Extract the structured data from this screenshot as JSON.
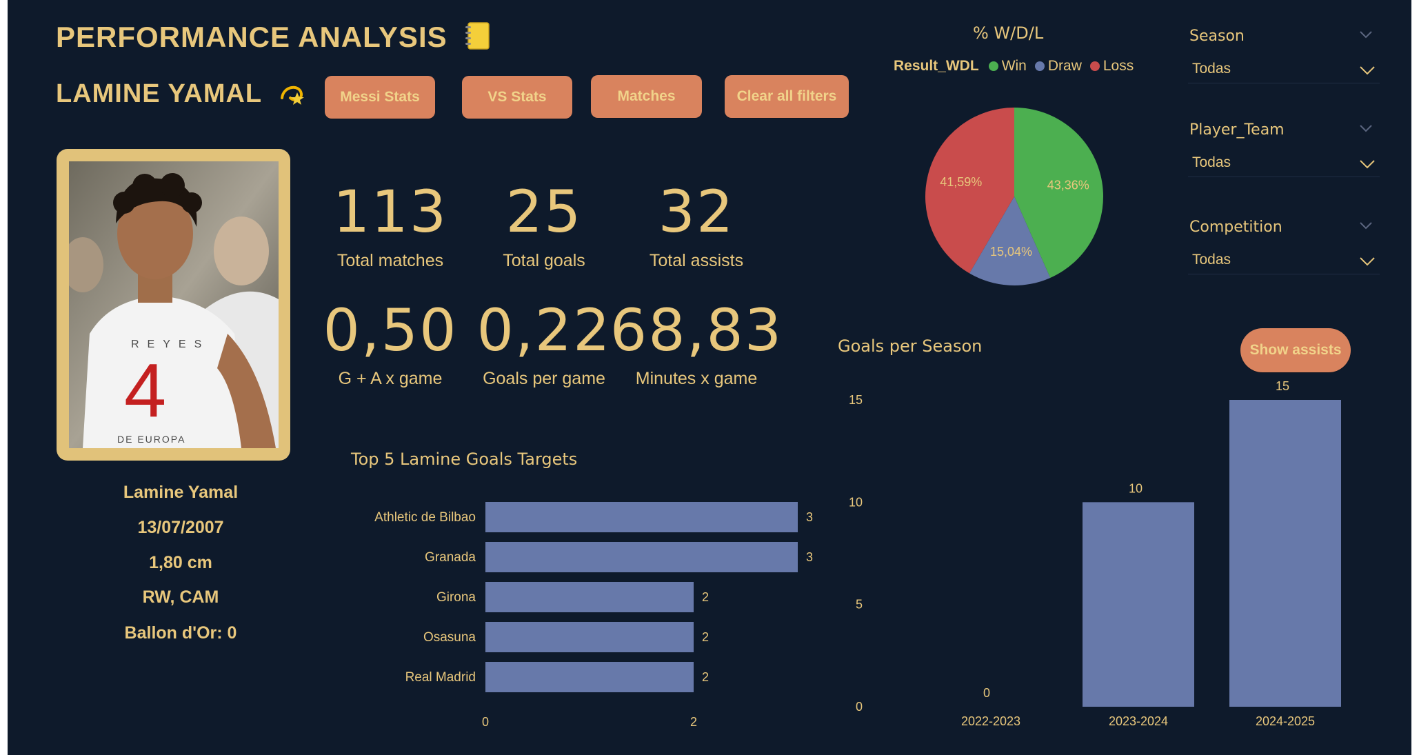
{
  "header": {
    "title": "PERFORMANCE ANALYSIS",
    "title_icon": "notebook-icon",
    "player_title": "LAMINE YAMAL",
    "player_icon": "dizzy-star-icon"
  },
  "buttons": {
    "messi": "Messi Stats",
    "vs": "VS Stats",
    "matches": "Matches",
    "clear": "Clear all filters",
    "show_assists": "Show assists"
  },
  "player": {
    "name": "Lamine Yamal",
    "birth": "13/07/2007",
    "height": "1,80 cm",
    "position": "RW, CAM",
    "ballon": "Ballon d'Or: 0",
    "shirt_text": "REYES",
    "shirt_number": "4",
    "shirt_bottom": "DE EUROPA"
  },
  "kpis": {
    "matches": {
      "value": "113",
      "label": "Total matches"
    },
    "goals": {
      "value": "25",
      "label": "Total goals"
    },
    "assists": {
      "value": "32",
      "label": "Total assists"
    },
    "ga": {
      "value": "0,50",
      "label": "G + A x game"
    },
    "gpg": {
      "value": "0,22",
      "label": "Goals per game"
    },
    "mpg": {
      "value": "68,83",
      "label": "Minutes x game"
    }
  },
  "slicers": {
    "season": {
      "title": "Season",
      "value": "Todas"
    },
    "team": {
      "title": "Player_Team",
      "value": "Todas"
    },
    "competition": {
      "title": "Competition",
      "value": "Todas"
    }
  },
  "colors": {
    "background": "#0e1a2b",
    "gold": "#e8c77c",
    "button": "#d9835e",
    "bar": "#6779aa",
    "win": "#4caf50",
    "draw": "#6779aa",
    "loss": "#c94c4c"
  },
  "chart_data": [
    {
      "type": "pie",
      "title": "% W/D/L",
      "legend_title": "Result_WDL",
      "legend_position": "top",
      "slices": [
        {
          "name": "Win",
          "value": 43.36,
          "label": "43,36%"
        },
        {
          "name": "Draw",
          "value": 15.04,
          "label": "15,04%"
        },
        {
          "name": "Loss",
          "value": 41.59,
          "label": "41,59%"
        }
      ]
    },
    {
      "type": "bar",
      "orientation": "horizontal",
      "title": "Top 5 Lamine Goals Targets",
      "categories": [
        "Athletic de Bilbao",
        "Granada",
        "Girona",
        "Osasuna",
        "Real Madrid"
      ],
      "values": [
        3,
        3,
        2,
        2,
        2
      ],
      "value_labels": [
        "3",
        "3",
        "2",
        "2",
        "2"
      ],
      "xlim": [
        0,
        3
      ],
      "xticks": [
        "0",
        "2"
      ],
      "grid": false
    },
    {
      "type": "bar",
      "title": "Goals per Season",
      "categories": [
        "2022-2023",
        "2023-2024",
        "2024-2025"
      ],
      "values": [
        0,
        10,
        15
      ],
      "value_labels": [
        "0",
        "10",
        "15"
      ],
      "ylim": [
        0,
        15
      ],
      "yticks": [
        "0",
        "5",
        "10",
        "15"
      ],
      "grid": false
    }
  ]
}
